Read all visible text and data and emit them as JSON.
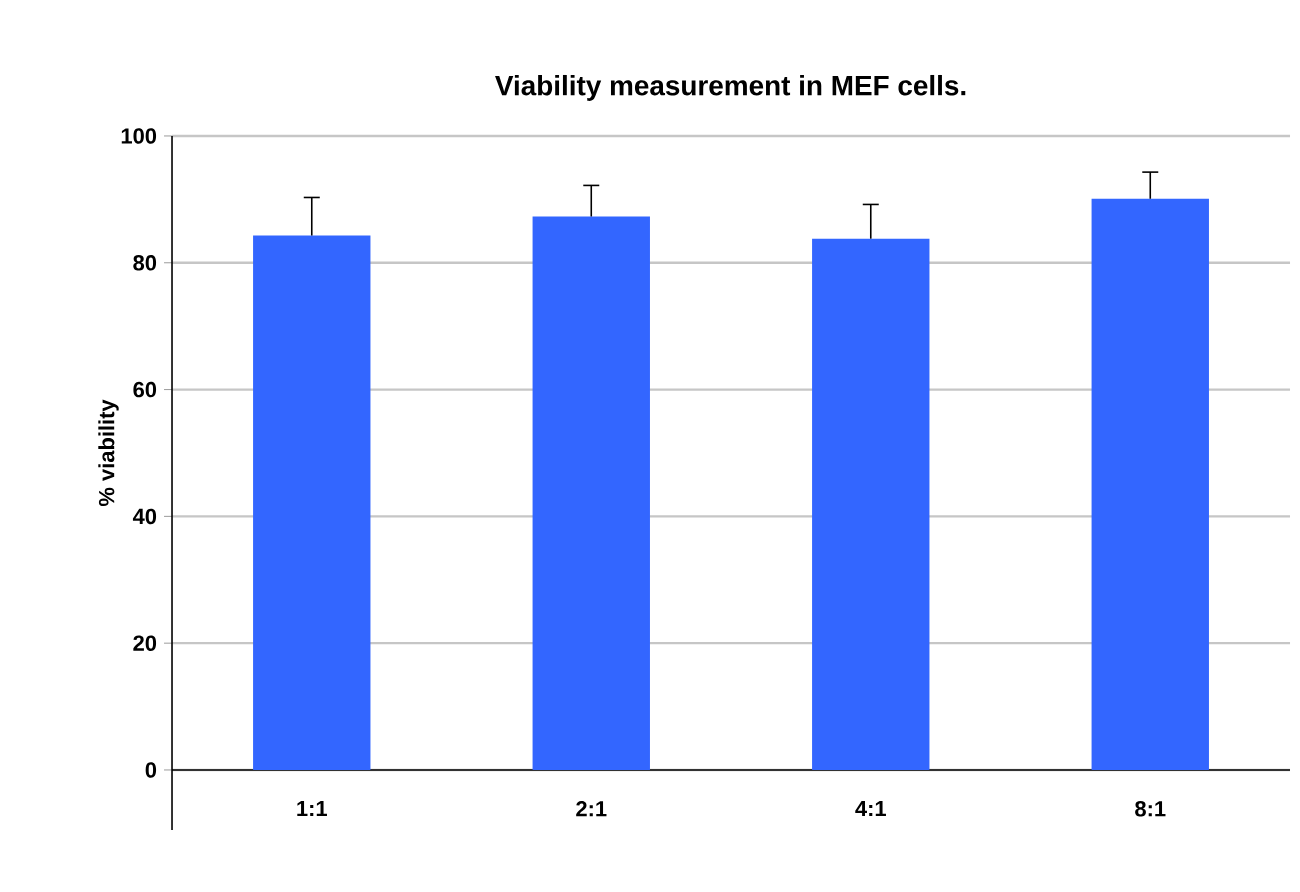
{
  "chart_data": {
    "type": "bar",
    "title": "Viability measurement in MEF cells.",
    "ylabel": "% viability",
    "categories": [
      "1:1",
      "2:1",
      "4:1",
      "8:1"
    ],
    "values": [
      84.3,
      87.3,
      83.8,
      90.1
    ],
    "errors": [
      [
        84.3,
        90.3
      ],
      [
        87.3,
        92.2
      ],
      [
        83.8,
        89.2
      ],
      [
        90.1,
        94.3
      ]
    ],
    "color": "#3366ff",
    "ylim": [
      0,
      100
    ],
    "yticks": [
      0,
      20,
      40,
      60,
      80,
      100
    ],
    "grid": "y"
  }
}
